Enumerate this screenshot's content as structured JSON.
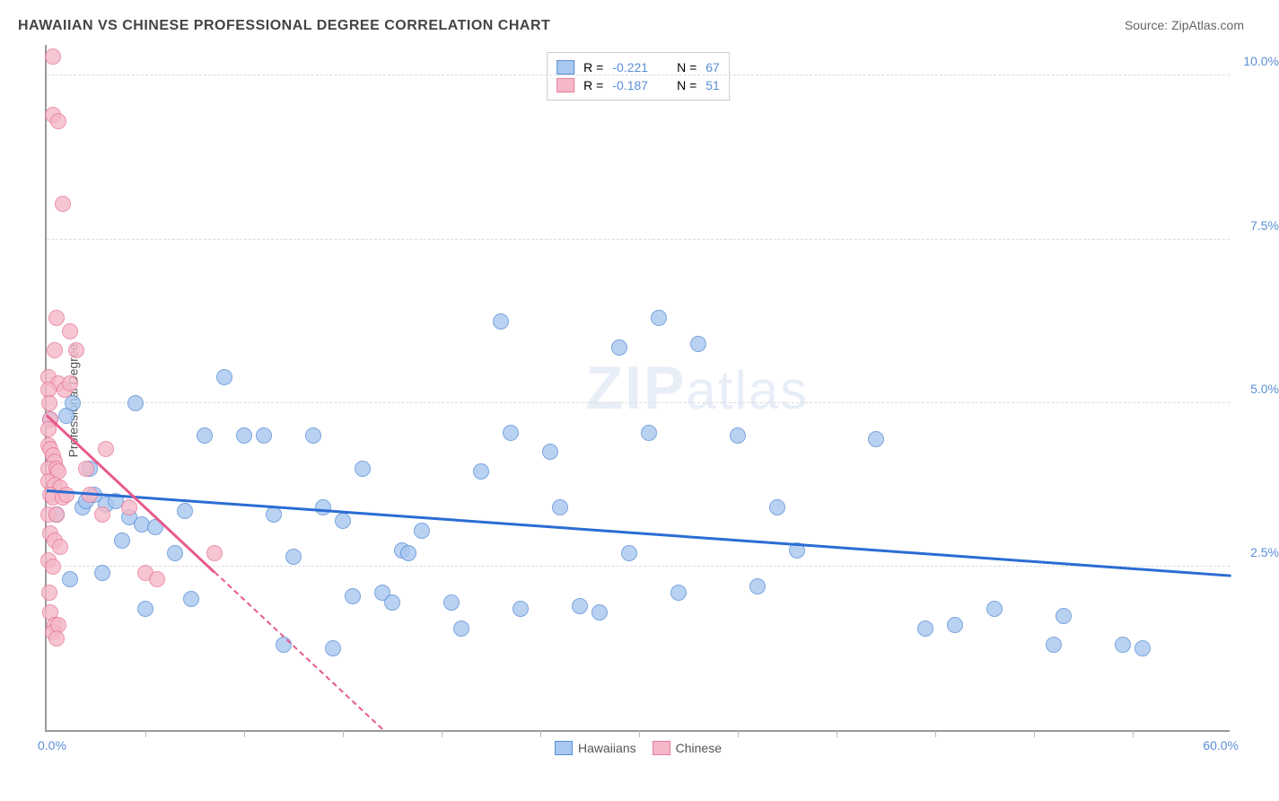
{
  "title": "HAWAIIAN VS CHINESE PROFESSIONAL DEGREE CORRELATION CHART",
  "source_label": "Source: ",
  "source_name": "ZipAtlas.com",
  "y_axis_title": "Professional Degree",
  "watermark_bold": "ZIP",
  "watermark_light": "atlas",
  "chart": {
    "type": "scatter",
    "background_color": "#ffffff",
    "grid_color": "#dddddd",
    "axis_color": "#999999",
    "x_min": 0.0,
    "x_max": 60.0,
    "y_min": 0.0,
    "y_max": 10.5,
    "x_tick_step": 5.0,
    "y_ticks": [
      2.5,
      5.0,
      7.5,
      10.0
    ],
    "y_tick_labels": [
      "2.5%",
      "5.0%",
      "7.5%",
      "10.0%"
    ],
    "x_label_min": "0.0%",
    "x_label_max": "60.0%",
    "point_radius": 9,
    "point_fill_opacity": 0.35,
    "point_stroke_width": 1.5,
    "series": [
      {
        "name": "Hawaiians",
        "color_fill": "#a8c8f0",
        "color_stroke": "#5b8fd6",
        "R_label": "R = ",
        "R_value": "-0.221",
        "N_label": "N = ",
        "N_value": "67",
        "trend": {
          "x1": 0,
          "y1": 3.65,
          "x2": 60,
          "y2": 2.35,
          "color": "#2b6cd4",
          "width": 2.5,
          "dash_after_x": null
        },
        "points": [
          [
            0.2,
            4.75
          ],
          [
            0.5,
            3.3
          ],
          [
            1.0,
            4.8
          ],
          [
            1.2,
            2.3
          ],
          [
            1.3,
            5.0
          ],
          [
            1.8,
            3.4
          ],
          [
            2.0,
            3.5
          ],
          [
            2.2,
            4.0
          ],
          [
            2.4,
            3.6
          ],
          [
            2.8,
            2.4
          ],
          [
            3.0,
            3.45
          ],
          [
            3.5,
            3.5
          ],
          [
            3.8,
            2.9
          ],
          [
            4.2,
            3.25
          ],
          [
            4.5,
            5.0
          ],
          [
            4.8,
            3.15
          ],
          [
            5.0,
            1.85
          ],
          [
            5.5,
            3.1
          ],
          [
            6.5,
            2.7
          ],
          [
            7.0,
            3.35
          ],
          [
            7.3,
            2.0
          ],
          [
            8.0,
            4.5
          ],
          [
            9.0,
            5.4
          ],
          [
            10.0,
            4.5
          ],
          [
            11.0,
            4.5
          ],
          [
            11.5,
            3.3
          ],
          [
            12.0,
            1.3
          ],
          [
            12.5,
            2.65
          ],
          [
            13.5,
            4.5
          ],
          [
            14.0,
            3.4
          ],
          [
            14.5,
            1.25
          ],
          [
            15.0,
            3.2
          ],
          [
            15.5,
            2.05
          ],
          [
            16.0,
            4.0
          ],
          [
            17.0,
            2.1
          ],
          [
            17.5,
            1.95
          ],
          [
            18.0,
            2.75
          ],
          [
            18.3,
            2.7
          ],
          [
            19.0,
            3.05
          ],
          [
            20.5,
            1.95
          ],
          [
            21.0,
            1.55
          ],
          [
            22.0,
            3.95
          ],
          [
            23.0,
            6.25
          ],
          [
            23.5,
            4.55
          ],
          [
            24.0,
            1.85
          ],
          [
            25.5,
            4.25
          ],
          [
            26.0,
            3.4
          ],
          [
            27.0,
            1.9
          ],
          [
            28.0,
            1.8
          ],
          [
            29.0,
            5.85
          ],
          [
            29.5,
            2.7
          ],
          [
            30.5,
            4.55
          ],
          [
            31.0,
            6.3
          ],
          [
            32.0,
            2.1
          ],
          [
            33.0,
            5.9
          ],
          [
            35.0,
            4.5
          ],
          [
            36.0,
            2.2
          ],
          [
            37.0,
            3.4
          ],
          [
            38.0,
            2.75
          ],
          [
            42.0,
            4.45
          ],
          [
            44.5,
            1.55
          ],
          [
            46.0,
            1.6
          ],
          [
            48.0,
            1.85
          ],
          [
            51.0,
            1.3
          ],
          [
            51.5,
            1.75
          ],
          [
            54.5,
            1.3
          ],
          [
            55.5,
            1.25
          ]
        ]
      },
      {
        "name": "Chinese",
        "color_fill": "#f5b8c8",
        "color_stroke": "#e87a9a",
        "R_label": "R = ",
        "R_value": "-0.187",
        "N_label": "N = ",
        "N_value": "51",
        "trend": {
          "x1": 0,
          "y1": 4.8,
          "x2": 17,
          "y2": 0.0,
          "color": "#e85a8a",
          "width": 2.5,
          "dash_after_x": 8.5
        },
        "points": [
          [
            0.3,
            10.3
          ],
          [
            0.3,
            9.4
          ],
          [
            0.6,
            9.3
          ],
          [
            0.8,
            8.05
          ],
          [
            0.5,
            6.3
          ],
          [
            1.2,
            6.1
          ],
          [
            0.4,
            5.8
          ],
          [
            1.5,
            5.8
          ],
          [
            0.1,
            5.4
          ],
          [
            0.6,
            5.3
          ],
          [
            0.1,
            5.2
          ],
          [
            0.15,
            5.0
          ],
          [
            0.2,
            4.75
          ],
          [
            0.1,
            4.6
          ],
          [
            0.9,
            5.2
          ],
          [
            1.2,
            5.3
          ],
          [
            0.1,
            4.35
          ],
          [
            0.2,
            4.3
          ],
          [
            0.3,
            4.2
          ],
          [
            0.4,
            4.1
          ],
          [
            0.1,
            4.0
          ],
          [
            0.5,
            4.0
          ],
          [
            0.6,
            3.95
          ],
          [
            0.1,
            3.8
          ],
          [
            0.4,
            3.75
          ],
          [
            0.7,
            3.7
          ],
          [
            0.2,
            3.6
          ],
          [
            0.3,
            3.55
          ],
          [
            0.8,
            3.55
          ],
          [
            1.0,
            3.6
          ],
          [
            0.1,
            3.3
          ],
          [
            0.5,
            3.3
          ],
          [
            0.2,
            3.0
          ],
          [
            0.4,
            2.9
          ],
          [
            0.7,
            2.8
          ],
          [
            0.1,
            2.6
          ],
          [
            0.3,
            2.5
          ],
          [
            0.15,
            2.1
          ],
          [
            0.2,
            1.8
          ],
          [
            0.4,
            1.6
          ],
          [
            0.3,
            1.5
          ],
          [
            0.6,
            1.6
          ],
          [
            0.5,
            1.4
          ],
          [
            2.0,
            4.0
          ],
          [
            2.2,
            3.6
          ],
          [
            2.8,
            3.3
          ],
          [
            3.0,
            4.3
          ],
          [
            4.2,
            3.4
          ],
          [
            5.0,
            2.4
          ],
          [
            5.6,
            2.3
          ],
          [
            8.5,
            2.7
          ]
        ]
      }
    ],
    "legend_bottom": [
      {
        "label": "Hawaiians",
        "fill": "#a8c8f0",
        "stroke": "#5b8fd6"
      },
      {
        "label": "Chinese",
        "fill": "#f5b8c8",
        "stroke": "#e87a9a"
      }
    ]
  }
}
